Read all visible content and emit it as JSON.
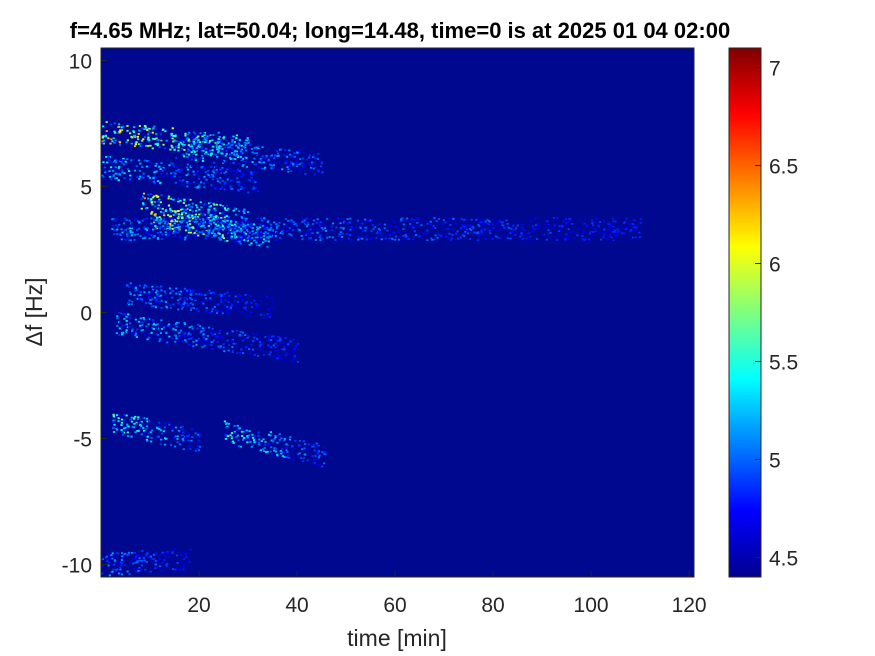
{
  "chart_data": {
    "type": "heatmap",
    "title": "f=4.65 MHz;  lat=50.04; long=14.48, time=0 is at 2025 01 04 02:00",
    "xlabel": "time [min]",
    "ylabel": "Δf [Hz]",
    "xlim": [
      0,
      121
    ],
    "ylim": [
      -10.5,
      10.5
    ],
    "xticks": [
      20,
      40,
      60,
      80,
      100,
      120
    ],
    "yticks": [
      10,
      5,
      0,
      -5,
      -10
    ],
    "colorbar": {
      "colormap": "jet",
      "range": [
        4.4,
        7.1
      ],
      "ticks": [
        "7",
        "6.5",
        "6",
        "5.5",
        "5",
        "4.5"
      ],
      "tick_values": [
        7,
        6.5,
        6,
        5.5,
        5,
        4.5
      ]
    },
    "background_value": 4.5,
    "features": [
      {
        "t0": 0,
        "t1": 30,
        "f0": 7.2,
        "f1": 6.6,
        "amp": 0.9
      },
      {
        "t0": 15,
        "t1": 45,
        "f0": 6.6,
        "f1": 5.9,
        "amp": 0.5
      },
      {
        "t0": 0,
        "t1": 32,
        "f0": 5.8,
        "f1": 5.2,
        "amp": 0.45
      },
      {
        "t0": 8,
        "t1": 30,
        "f0": 4.4,
        "f1": 3.7,
        "amp": 0.85
      },
      {
        "t0": 10,
        "t1": 35,
        "f0": 3.8,
        "f1": 3.0,
        "amp": 0.8
      },
      {
        "t0": 2,
        "t1": 110,
        "f0": 3.35,
        "f1": 3.35,
        "amp": 0.35
      },
      {
        "t0": 5,
        "t1": 35,
        "f0": 0.8,
        "f1": 0.2,
        "amp": 0.35
      },
      {
        "t0": 3,
        "t1": 40,
        "f0": -0.4,
        "f1": -1.5,
        "amp": 0.4
      },
      {
        "t0": 2,
        "t1": 20,
        "f0": -4.3,
        "f1": -5.1,
        "amp": 0.55
      },
      {
        "t0": 25,
        "t1": 46,
        "f0": -4.7,
        "f1": -5.7,
        "amp": 0.5
      },
      {
        "t0": 0,
        "t1": 18,
        "f0": -10.0,
        "f1": -9.7,
        "amp": 0.35
      }
    ]
  }
}
